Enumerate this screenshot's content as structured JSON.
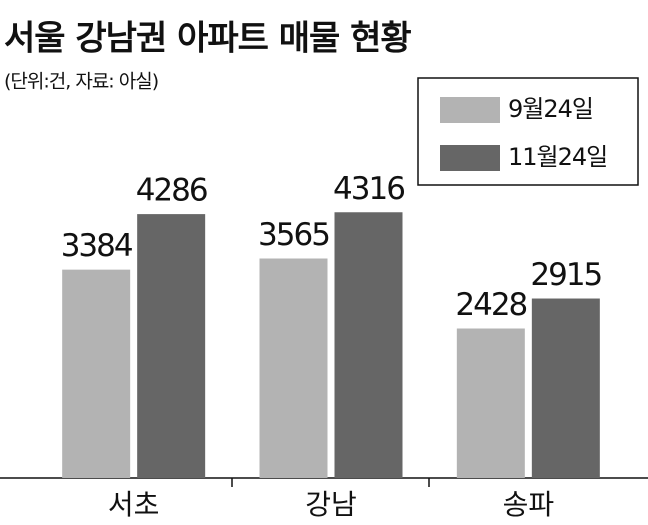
{
  "chart_data": {
    "type": "bar",
    "title": "서울 강남권 아파트 매물 현황",
    "subtitle": "(단위:건, 자료: 아실)",
    "categories": [
      "서초",
      "강남",
      "송파"
    ],
    "series": [
      {
        "name": "9월24일",
        "color": "#b3b3b3",
        "values": [
          3384,
          3565,
          2428
        ]
      },
      {
        "name": "11월24일",
        "color": "#666666",
        "values": [
          4286,
          4316,
          2915
        ]
      }
    ],
    "ylim": [
      0,
      7000
    ],
    "legend": "top-right"
  }
}
